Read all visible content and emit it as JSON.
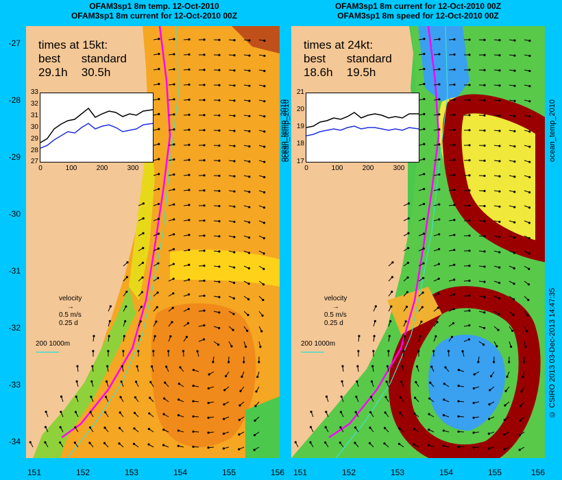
{
  "left": {
    "title1": "OFAM3sp1 8m temp. 12-Oct-2010",
    "title2": "OFAM3sp1 8m current for 12-Oct-2010 00Z",
    "times_heading": "times at 15kt:",
    "best_label": "best",
    "standard_label": "standard",
    "best_value": "29.1h",
    "standard_value": "30.5h",
    "inset_yticks": [
      "33",
      "32",
      "31",
      "30",
      "29",
      "28",
      "27"
    ],
    "side_label": "ocean_temp_2010"
  },
  "right": {
    "title1": "OFAM3sp1 8m current for 12-Oct-2010 00Z",
    "title2": "OFAM3sp1 8m speed for 12-Oct-2010 00Z",
    "times_heading": "times at 24kt:",
    "best_label": "best",
    "standard_label": "standard",
    "best_value": "18.6h",
    "standard_value": "19.5h",
    "inset_yticks": [
      "21",
      "20",
      "19",
      "18",
      "17"
    ],
    "side_label": "ocean_temp_2010"
  },
  "inset_xticks": [
    "0",
    "100",
    "200",
    "300"
  ],
  "lat_ticks": [
    "-27",
    "-28",
    "-29",
    "-30",
    "-31",
    "-32",
    "-33",
    "-34"
  ],
  "lon_ticks": [
    "151",
    "152",
    "153",
    "154",
    "155",
    "156"
  ],
  "velocity": {
    "label": "velocity",
    "speed": "0.5 m/s",
    "duration": "0.25 d"
  },
  "depth_scale": "200  1000m",
  "credit": "© CSIRO 2013   03-Dec-2013 14:47:35",
  "colors": {
    "background": "#00c8ff",
    "land": "#f4c796",
    "route": "#ff00ff",
    "contour": "#40e0d0"
  }
}
